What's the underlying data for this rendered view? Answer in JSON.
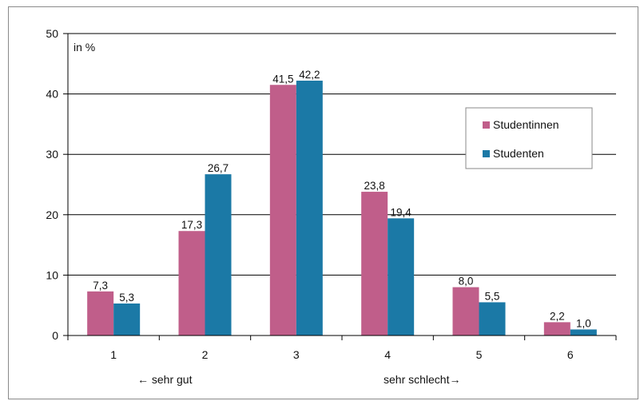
{
  "chart_data": {
    "type": "bar",
    "unit_label": "in %",
    "categories": [
      "1",
      "2",
      "3",
      "4",
      "5",
      "6"
    ],
    "series": [
      {
        "name": "Studentinnen",
        "color": "#c05e8a",
        "values": [
          7.3,
          17.3,
          41.5,
          23.8,
          8.0,
          2.2
        ],
        "labels": [
          "7,3",
          "17,3",
          "41,5",
          "23,8",
          "8,0",
          "2,2"
        ]
      },
      {
        "name": "Studenten",
        "color": "#1b79a6",
        "values": [
          5.3,
          26.7,
          42.2,
          19.4,
          5.5,
          1.0
        ],
        "labels": [
          "5,3",
          "26,7",
          "42,2",
          "19,4",
          "5,5",
          "1,0"
        ]
      }
    ],
    "ylim": [
      0,
      50
    ],
    "yticks": [
      0,
      10,
      20,
      30,
      40,
      50
    ],
    "grid": true,
    "legend_position": "right",
    "annotations": {
      "left": "← sehr gut",
      "right": "sehr schlecht→"
    }
  }
}
